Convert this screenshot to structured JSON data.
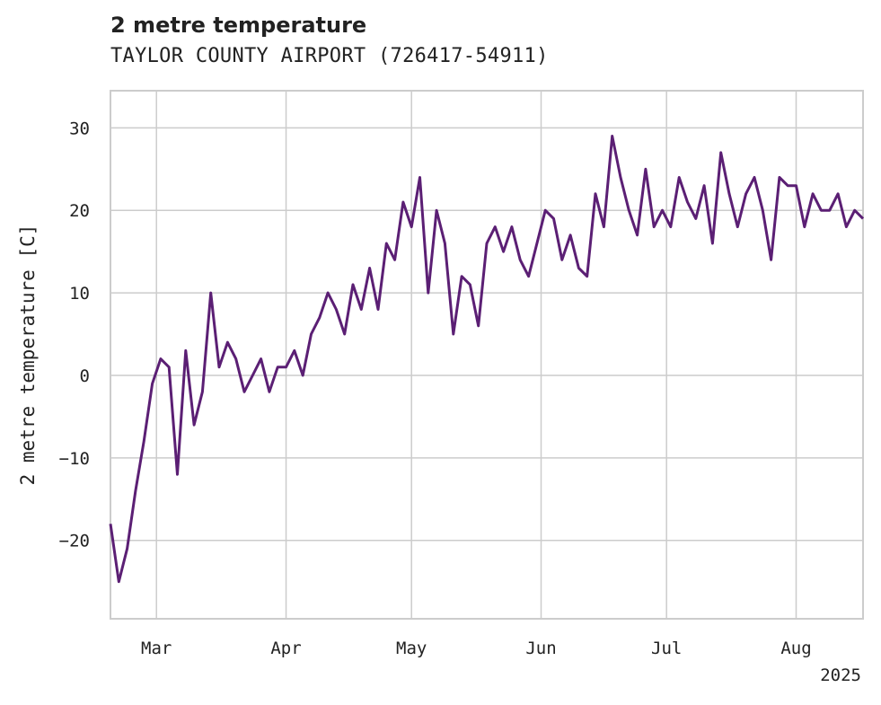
{
  "chart_data": {
    "type": "line",
    "title": "2 metre temperature",
    "subtitle": "TAYLOR COUNTY AIRPORT (726417-54911)",
    "ylabel": "2 metre temperature [C]",
    "xlabel": "",
    "x_axis": {
      "type": "date",
      "start": "2025-02-18",
      "end": "2025-08-17",
      "ticks": [
        {
          "date": "2025-03-01",
          "label": "Mar"
        },
        {
          "date": "2025-04-01",
          "label": "Apr"
        },
        {
          "date": "2025-05-01",
          "label": "May"
        },
        {
          "date": "2025-06-01",
          "label": "Jun"
        },
        {
          "date": "2025-07-01",
          "label": "Jul"
        },
        {
          "date": "2025-08-01",
          "label": "Aug"
        }
      ],
      "offset_label": "2025"
    },
    "ylim": [
      -29.5,
      34.5
    ],
    "yticks": [
      -20,
      -10,
      0,
      10,
      20,
      30
    ],
    "grid": true,
    "legend": "none",
    "colors": {
      "line": "#5b1f74",
      "grid": "#cccccc",
      "frame": "#cccccc"
    },
    "series": [
      {
        "name": "",
        "x": [
          "2025-02-18",
          "2025-02-20",
          "2025-02-22",
          "2025-02-24",
          "2025-02-26",
          "2025-02-28",
          "2025-03-02",
          "2025-03-04",
          "2025-03-06",
          "2025-03-08",
          "2025-03-10",
          "2025-03-12",
          "2025-03-14",
          "2025-03-16",
          "2025-03-18",
          "2025-03-20",
          "2025-03-22",
          "2025-03-24",
          "2025-03-26",
          "2025-03-28",
          "2025-03-30",
          "2025-04-01",
          "2025-04-03",
          "2025-04-05",
          "2025-04-07",
          "2025-04-09",
          "2025-04-11",
          "2025-04-13",
          "2025-04-15",
          "2025-04-17",
          "2025-04-19",
          "2025-04-21",
          "2025-04-23",
          "2025-04-25",
          "2025-04-27",
          "2025-04-29",
          "2025-05-01",
          "2025-05-03",
          "2025-05-05",
          "2025-05-07",
          "2025-05-09",
          "2025-05-11",
          "2025-05-13",
          "2025-05-15",
          "2025-05-17",
          "2025-05-19",
          "2025-05-21",
          "2025-05-23",
          "2025-05-25",
          "2025-05-27",
          "2025-05-29",
          "2025-05-31",
          "2025-06-02",
          "2025-06-04",
          "2025-06-06",
          "2025-06-08",
          "2025-06-10",
          "2025-06-12",
          "2025-06-14",
          "2025-06-16",
          "2025-06-18",
          "2025-06-20",
          "2025-06-22",
          "2025-06-24",
          "2025-06-26",
          "2025-06-28",
          "2025-06-30",
          "2025-07-02",
          "2025-07-04",
          "2025-07-06",
          "2025-07-08",
          "2025-07-10",
          "2025-07-12",
          "2025-07-14",
          "2025-07-16",
          "2025-07-18",
          "2025-07-20",
          "2025-07-22",
          "2025-07-24",
          "2025-07-26",
          "2025-07-28",
          "2025-07-30",
          "2025-08-01",
          "2025-08-03",
          "2025-08-05",
          "2025-08-07",
          "2025-08-09",
          "2025-08-11",
          "2025-08-13",
          "2025-08-15",
          "2025-08-17"
        ],
        "values": [
          -18,
          -25,
          -21,
          -14,
          -8,
          -1,
          2,
          1,
          -12,
          3,
          -6,
          -2,
          10,
          1,
          4,
          2,
          -2,
          0,
          2,
          -2,
          1,
          1,
          3,
          0,
          5,
          7,
          10,
          8,
          5,
          11,
          8,
          13,
          8,
          16,
          14,
          21,
          18,
          24,
          10,
          20,
          16,
          5,
          12,
          11,
          6,
          16,
          18,
          15,
          18,
          14,
          12,
          16,
          20,
          19,
          14,
          17,
          13,
          12,
          22,
          18,
          29,
          24,
          20,
          17,
          25,
          18,
          20,
          18,
          24,
          21,
          19,
          23,
          16,
          27,
          22,
          18,
          22,
          24,
          20,
          14,
          24,
          23,
          23,
          18,
          22,
          20,
          20,
          22,
          18,
          20,
          19
        ]
      }
    ]
  }
}
